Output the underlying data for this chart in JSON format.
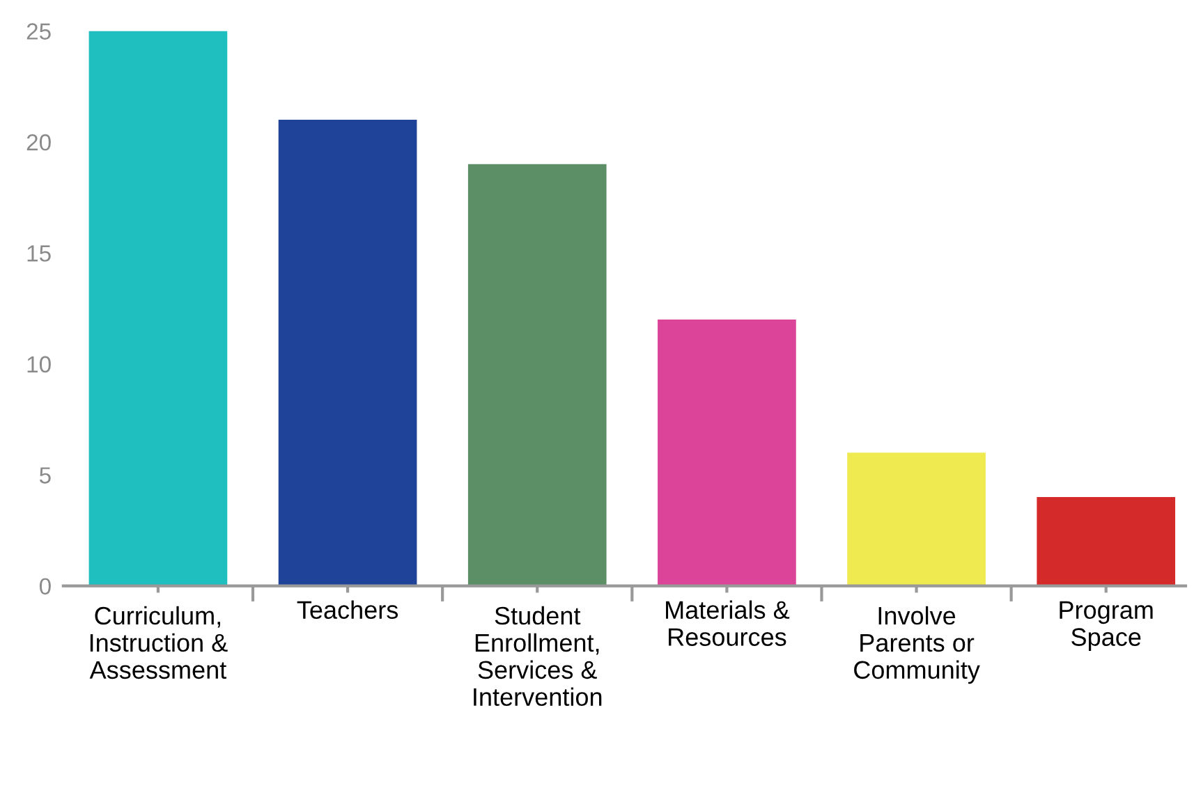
{
  "chart_data": {
    "type": "bar",
    "categories": [
      "Curriculum,\nInstruction &\nAssessment",
      "Teachers",
      "Student\nEnrollment,\nServices &\nIntervention",
      "Materials &\nResources",
      "Involve\nParents or\nCommunity",
      "Program\nSpace"
    ],
    "values": [
      25,
      21,
      19,
      12,
      6,
      4
    ],
    "colors": [
      "#20bfbf",
      "#1e4398",
      "#5c8f66",
      "#dc4499",
      "#eeea50",
      "#d42a2a"
    ],
    "ylim": [
      0,
      25
    ],
    "yticks": [
      0,
      5,
      10,
      15,
      20,
      25
    ],
    "grid": false,
    "legend": false
  }
}
